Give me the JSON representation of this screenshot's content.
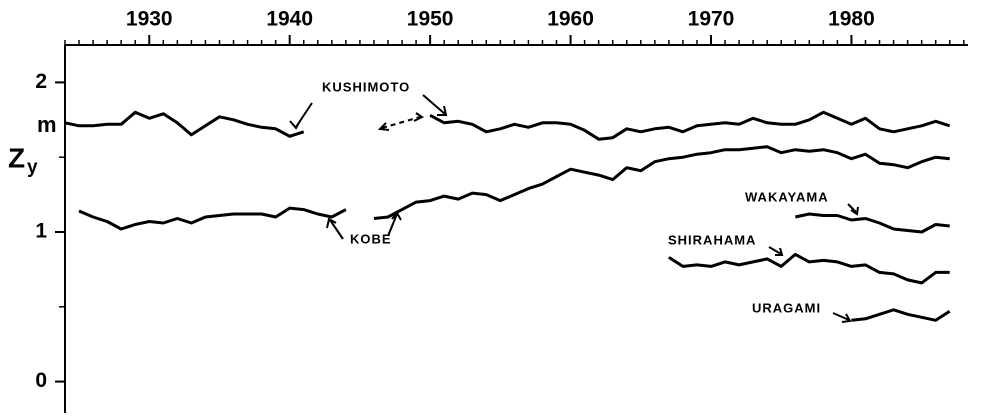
{
  "chart_data": {
    "type": "line",
    "ylabel": "Z",
    "ylabel_sub": "y",
    "yunit": "m",
    "x": [
      1924,
      1925,
      1926,
      1927,
      1928,
      1929,
      1930,
      1931,
      1932,
      1933,
      1934,
      1935,
      1936,
      1937,
      1938,
      1939,
      1940,
      1941,
      1942,
      1943,
      1944,
      1945,
      1946,
      1947,
      1948,
      1949,
      1950,
      1951,
      1952,
      1953,
      1954,
      1955,
      1956,
      1957,
      1958,
      1959,
      1960,
      1961,
      1962,
      1963,
      1964,
      1965,
      1966,
      1967,
      1968,
      1969,
      1970,
      1971,
      1972,
      1973,
      1974,
      1975,
      1976,
      1977,
      1978,
      1979,
      1980,
      1981,
      1982,
      1983,
      1984,
      1985,
      1986,
      1987
    ],
    "series": [
      {
        "name": "KUSHIMOTO",
        "color": "#000000",
        "values": [
          1.73,
          1.71,
          1.71,
          1.72,
          1.72,
          1.8,
          1.76,
          1.79,
          1.73,
          1.65,
          1.71,
          1.77,
          1.75,
          1.72,
          1.7,
          1.69,
          1.64,
          1.67,
          null,
          null,
          null,
          null,
          null,
          null,
          null,
          null,
          1.78,
          1.73,
          1.74,
          1.72,
          1.67,
          1.69,
          1.72,
          1.7,
          1.73,
          1.73,
          1.72,
          1.68,
          1.62,
          1.63,
          1.69,
          1.67,
          1.69,
          1.7,
          1.67,
          1.71,
          1.72,
          1.73,
          1.72,
          1.76,
          1.73,
          1.72,
          1.72,
          1.75,
          1.8,
          1.76,
          1.72,
          1.76,
          1.69,
          1.67,
          1.69,
          1.71,
          1.74,
          1.71
        ]
      },
      {
        "name": "KOBE",
        "color": "#000000",
        "values": [
          null,
          1.14,
          1.1,
          1.07,
          1.02,
          1.05,
          1.07,
          1.06,
          1.09,
          1.06,
          1.1,
          1.11,
          1.12,
          1.12,
          1.12,
          1.1,
          1.16,
          1.15,
          1.12,
          1.1,
          1.15,
          null,
          1.09,
          1.1,
          1.15,
          1.2,
          1.21,
          1.24,
          1.22,
          1.26,
          1.25,
          1.21,
          1.25,
          1.29,
          1.32,
          1.37,
          1.42,
          1.4,
          1.38,
          1.35,
          1.43,
          1.41,
          1.47,
          1.49,
          1.5,
          1.52,
          1.53,
          1.55,
          1.55,
          1.56,
          1.57,
          1.53,
          1.55,
          1.54,
          1.55,
          1.53,
          1.49,
          1.52,
          1.46,
          1.45,
          1.43,
          1.47,
          1.5,
          1.49
        ]
      },
      {
        "name": "WAKAYAMA",
        "color": "#000000",
        "values": [
          null,
          null,
          null,
          null,
          null,
          null,
          null,
          null,
          null,
          null,
          null,
          null,
          null,
          null,
          null,
          null,
          null,
          null,
          null,
          null,
          null,
          null,
          null,
          null,
          null,
          null,
          null,
          null,
          null,
          null,
          null,
          null,
          null,
          null,
          null,
          null,
          null,
          null,
          null,
          null,
          null,
          null,
          null,
          null,
          null,
          null,
          null,
          null,
          null,
          null,
          null,
          null,
          1.1,
          1.12,
          1.11,
          1.11,
          1.08,
          1.09,
          1.06,
          1.02,
          1.01,
          1.0,
          1.05,
          1.04
        ]
      },
      {
        "name": "SHIRAHAMA",
        "color": "#000000",
        "values": [
          null,
          null,
          null,
          null,
          null,
          null,
          null,
          null,
          null,
          null,
          null,
          null,
          null,
          null,
          null,
          null,
          null,
          null,
          null,
          null,
          null,
          null,
          null,
          null,
          null,
          null,
          null,
          null,
          null,
          null,
          null,
          null,
          null,
          null,
          null,
          null,
          null,
          null,
          null,
          null,
          null,
          null,
          null,
          0.83,
          0.77,
          0.78,
          0.77,
          0.8,
          0.78,
          0.8,
          0.82,
          0.77,
          0.85,
          0.8,
          0.81,
          0.8,
          0.77,
          0.78,
          0.73,
          0.72,
          0.68,
          0.66,
          0.73,
          0.73
        ]
      },
      {
        "name": "URAGAMI",
        "color": "#000000",
        "values": [
          null,
          null,
          null,
          null,
          null,
          null,
          null,
          null,
          null,
          null,
          null,
          null,
          null,
          null,
          null,
          null,
          null,
          null,
          null,
          null,
          null,
          null,
          null,
          null,
          null,
          null,
          null,
          null,
          null,
          null,
          null,
          null,
          null,
          null,
          null,
          null,
          null,
          null,
          null,
          null,
          null,
          null,
          null,
          null,
          null,
          null,
          null,
          null,
          null,
          null,
          null,
          null,
          null,
          null,
          null,
          null,
          0.41,
          0.42,
          0.45,
          0.48,
          0.45,
          0.43,
          0.41,
          0.47
        ]
      }
    ],
    "xlim": [
      1924,
      1988.3
    ],
    "xticks": [
      1930,
      1940,
      1950,
      1960,
      1970,
      1980
    ],
    "x_minor_step": 1,
    "x_axis_position": "top",
    "ylim": [
      -0.21,
      2.25
    ],
    "yticks": [
      0,
      1,
      2
    ],
    "y_minor_step": 0.5,
    "grid": false
  }
}
